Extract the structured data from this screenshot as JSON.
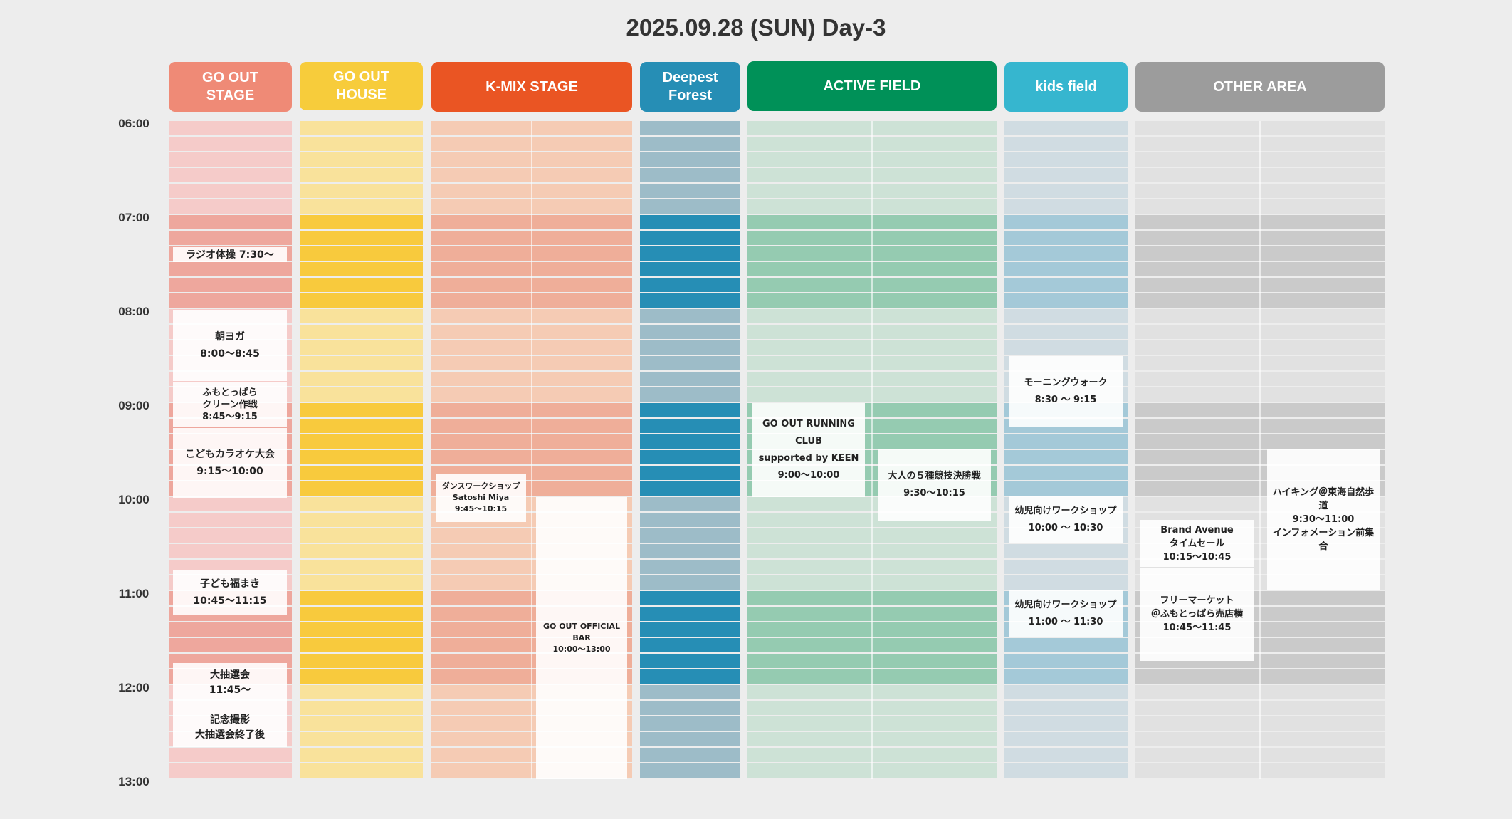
{
  "title": "2025.09.28 (SUN) Day-3",
  "stages": {
    "go_out_stage": {
      "label": "GO OUT\nSTAGE",
      "color": "#ef8a76"
    },
    "go_out_house": {
      "label": "GO OUT\nHOUSE",
      "color": "#f7cc3b"
    },
    "kmix_stage": {
      "label": "K-MIX STAGE",
      "color": "#ea5523"
    },
    "deepest_forest": {
      "label": "Deepest\nForest",
      "color": "#268eb5"
    },
    "active_field": {
      "label": "ACTIVE FIELD",
      "color": "#009158"
    },
    "kids_field": {
      "label": "kids field",
      "color": "#36b6cf"
    },
    "other_area": {
      "label": "OTHER AREA",
      "color": "#9c9c9c"
    }
  },
  "times": [
    "06:00",
    "07:00",
    "08:00",
    "09:00",
    "10:00",
    "11:00",
    "12:00",
    "13:00"
  ],
  "events": {
    "radio_taiso": "ラジオ体操 7:30〜",
    "asa_yoga": "朝ヨガ\n8:00〜8:45",
    "clean_sakusen": "ふもとっぱら\nクリーン作戦\n8:45〜9:15",
    "kodomo_karaoke": "こどもカラオケ大会\n9:15〜10:00",
    "kodomo_fukumaki": "子ども福まき\n10:45〜11:15",
    "daichusenkai": "大抽選会\n11:45〜\n\n記念撮影\n大抽選会終了後",
    "dance_workshop": "ダンスワークショップ\nSatoshi Miya\n9:45〜10:15",
    "official_bar": "GO OUT OFFICIAL BAR\n10:00〜13:00",
    "running_club": "GO OUT RUNNING CLUB\nsupported by KEEN\n9:00〜10:00",
    "otona_kessho": "大人の５種競技決勝戦\n9:30〜10:15",
    "morning_walk": "モーニングウォーク\n8:30 〜 9:15",
    "youji_ws_1": "幼児向けワークショップ\n10:00 〜 10:30",
    "youji_ws_2": "幼児向けワークショップ\n11:00 〜 11:30",
    "brand_avenue": "Brand Avenue\nタイムセール\n10:15〜10:45",
    "flea_market": "フリーマーケット\n＠ふもとっぱら売店横\n10:45〜11:45",
    "hiking": "ハイキング＠東海自然歩道\n9:30〜11:00\nインフォメーション前集合"
  }
}
